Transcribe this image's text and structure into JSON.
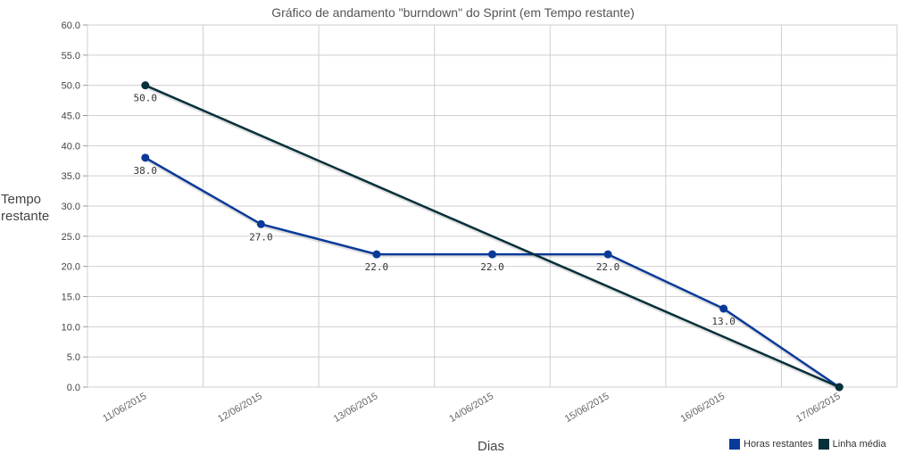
{
  "chart_data": {
    "type": "line",
    "title": "Gráfico de andamento \"burndown\" do Sprint (em Tempo restante)",
    "xlabel": "Dias",
    "ylabel_lines": [
      "Tempo",
      "restante"
    ],
    "categories": [
      "11/06/2015",
      "12/06/2015",
      "13/06/2015",
      "14/06/2015",
      "15/06/2015",
      "16/06/2015",
      "17/06/2015"
    ],
    "ylim": [
      0,
      60
    ],
    "yticks": [
      "0.0",
      "5.0",
      "10.0",
      "15.0",
      "20.0",
      "25.0",
      "30.0",
      "35.0",
      "40.0",
      "45.0",
      "50.0",
      "55.0",
      "60.0"
    ],
    "grid": true,
    "legend_position": "bottom-right",
    "series": [
      {
        "name": "Horas restantes",
        "color": "#0a3a99",
        "values": [
          38.0,
          27.0,
          22.0,
          22.0,
          22.0,
          13.0,
          0.0
        ],
        "labels": [
          "38.0",
          "27.0",
          "22.0",
          "22.0",
          "22.0",
          "13.0",
          ""
        ]
      },
      {
        "name": "Linha média",
        "color": "#06303a",
        "values": [
          50.0,
          null,
          null,
          null,
          null,
          null,
          0.0
        ],
        "labels": [
          "50.0",
          "",
          "",
          "",
          "",
          "",
          ""
        ]
      }
    ]
  }
}
